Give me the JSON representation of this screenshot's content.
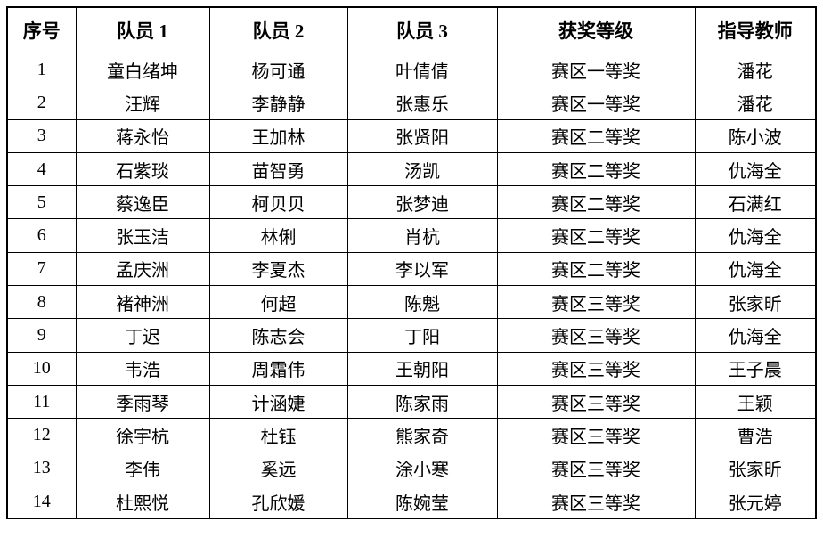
{
  "page": {
    "background_color": "#ffffff",
    "border_color": "#000000",
    "text_color": "#000000"
  },
  "table": {
    "headers": [
      "序号",
      "队员 1",
      "队员 2",
      "队员 3",
      "获奖等级",
      "指导教师"
    ],
    "rows": [
      {
        "no": "1",
        "member1": "童白绪坤",
        "member2": "杨可通",
        "member3": "叶倩倩",
        "award": "赛区一等奖",
        "teacher": "潘花"
      },
      {
        "no": "2",
        "member1": "汪辉",
        "member2": "李静静",
        "member3": "张惠乐",
        "award": "赛区一等奖",
        "teacher": "潘花"
      },
      {
        "no": "3",
        "member1": "蒋永怡",
        "member2": "王加林",
        "member3": "张贤阳",
        "award": "赛区二等奖",
        "teacher": "陈小波"
      },
      {
        "no": "4",
        "member1": "石紫琰",
        "member2": "苗智勇",
        "member3": "汤凯",
        "award": "赛区二等奖",
        "teacher": "仇海全"
      },
      {
        "no": "5",
        "member1": "蔡逸臣",
        "member2": "柯贝贝",
        "member3": "张梦迪",
        "award": "赛区二等奖",
        "teacher": "石满红"
      },
      {
        "no": "6",
        "member1": "张玉洁",
        "member2": "林俐",
        "member3": "肖杭",
        "award": "赛区二等奖",
        "teacher": "仇海全"
      },
      {
        "no": "7",
        "member1": "孟庆洲",
        "member2": "李夏杰",
        "member3": "李以军",
        "award": "赛区二等奖",
        "teacher": "仇海全"
      },
      {
        "no": "8",
        "member1": "褚神洲",
        "member2": "何超",
        "member3": "陈魁",
        "award": "赛区三等奖",
        "teacher": "张家昕"
      },
      {
        "no": "9",
        "member1": "丁迟",
        "member2": "陈志会",
        "member3": "丁阳",
        "award": "赛区三等奖",
        "teacher": "仇海全"
      },
      {
        "no": "10",
        "member1": "韦浩",
        "member2": "周霜伟",
        "member3": "王朝阳",
        "award": "赛区三等奖",
        "teacher": "王子晨"
      },
      {
        "no": "11",
        "member1": "季雨琴",
        "member2": "计涵婕",
        "member3": "陈家雨",
        "award": "赛区三等奖",
        "teacher": "王颖"
      },
      {
        "no": "12",
        "member1": "徐宇杭",
        "member2": "杜钰",
        "member3": "熊家奇",
        "award": "赛区三等奖",
        "teacher": "曹浩"
      },
      {
        "no": "13",
        "member1": "李伟",
        "member2": "奚远",
        "member3": "涂小寒",
        "award": "赛区三等奖",
        "teacher": "张家昕"
      },
      {
        "no": "14",
        "member1": "杜熙悦",
        "member2": "孔欣媛",
        "member3": "陈婉莹",
        "award": "赛区三等奖",
        "teacher": "张元婷"
      }
    ]
  }
}
